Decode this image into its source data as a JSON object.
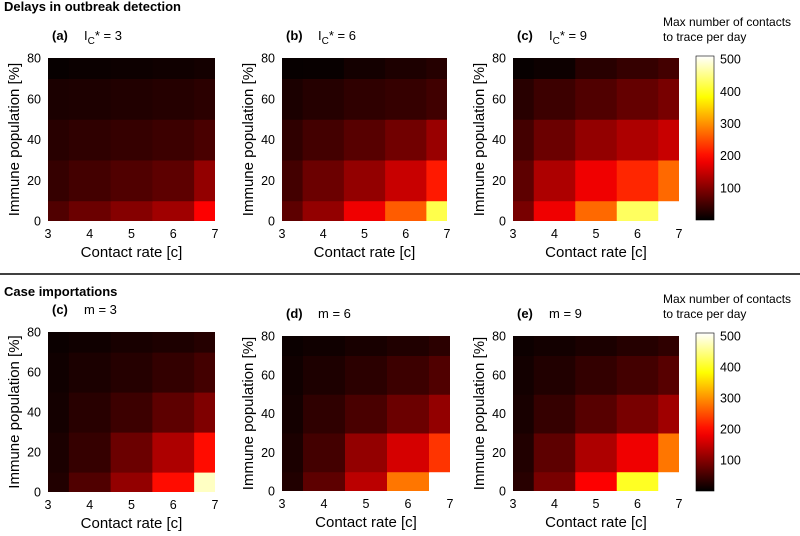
{
  "figure": {
    "sections": [
      {
        "title": "Delays in outbreak detection"
      },
      {
        "title": "Case importations"
      }
    ],
    "colorbar_title": [
      "Max number of contacts",
      "to trace per day"
    ],
    "colorbar_ticks": [
      100,
      200,
      300,
      400,
      500
    ],
    "colormap": "hot",
    "colors": {
      "background": "#ffffff",
      "separator": "#000000"
    }
  },
  "chart_data": [
    {
      "type": "heatmap",
      "section": "Delays in outbreak detection",
      "letter": "(a)",
      "param": "I",
      "param_sub": "C",
      "param_suffix": "* = 3",
      "xlabel": "Contact rate [c]",
      "ylabel": "Immune population [%]",
      "x_ticks": [
        3,
        4,
        5,
        6,
        7
      ],
      "y_ticks": [
        0,
        20,
        40,
        60,
        80
      ],
      "xlim": [
        3,
        7
      ],
      "ylim": [
        0,
        80
      ],
      "clim": [
        0,
        510
      ],
      "x_centers": [
        3,
        4,
        5,
        6,
        7
      ],
      "y_centers": [
        0,
        20,
        40,
        60,
        80
      ],
      "values": [
        [
          60,
          80,
          100,
          120,
          190
        ],
        [
          40,
          50,
          60,
          70,
          110
        ],
        [
          30,
          35,
          40,
          45,
          55
        ],
        [
          20,
          22,
          25,
          28,
          32
        ],
        [
          5,
          8,
          10,
          12,
          15
        ]
      ]
    },
    {
      "type": "heatmap",
      "section": "Delays in outbreak detection",
      "letter": "(b)",
      "param": "I",
      "param_sub": "C",
      "param_suffix": "* = 6",
      "xlabel": "Contact rate [c]",
      "ylabel": "Immune population [%]",
      "x_ticks": [
        3,
        4,
        5,
        6,
        7
      ],
      "y_ticks": [
        0,
        20,
        40,
        60,
        80
      ],
      "xlim": [
        3,
        7
      ],
      "ylim": [
        0,
        80
      ],
      "clim": [
        0,
        510
      ],
      "x_centers": [
        3,
        4,
        5,
        6,
        7
      ],
      "y_centers": [
        0,
        20,
        40,
        60,
        80
      ],
      "values": [
        [
          70,
          110,
          180,
          260,
          420
        ],
        [
          50,
          80,
          110,
          150,
          210
        ],
        [
          35,
          50,
          65,
          85,
          115
        ],
        [
          20,
          28,
          35,
          40,
          48
        ],
        [
          5,
          6,
          15,
          22,
          28
        ]
      ]
    },
    {
      "type": "heatmap",
      "section": "Delays in outbreak detection",
      "letter": "(c)",
      "param": "I",
      "param_sub": "C",
      "param_suffix": "* = 9",
      "xlabel": "Contact rate [c]",
      "ylabel": "Immune population [%]",
      "x_ticks": [
        3,
        4,
        5,
        6,
        7
      ],
      "y_ticks": [
        0,
        20,
        40,
        60,
        80
      ],
      "xlim": [
        3,
        7
      ],
      "ylim": [
        0,
        80
      ],
      "clim": [
        0,
        510
      ],
      "x_centers": [
        3,
        4,
        5,
        6,
        7
      ],
      "y_centers": [
        0,
        20,
        40,
        60,
        80
      ],
      "values": [
        [
          90,
          180,
          270,
          430,
          510
        ],
        [
          70,
          130,
          180,
          220,
          270
        ],
        [
          50,
          80,
          110,
          130,
          150
        ],
        [
          30,
          45,
          60,
          75,
          90
        ],
        [
          5,
          10,
          30,
          40,
          50
        ]
      ]
    },
    {
      "type": "heatmap",
      "section": "Case importations",
      "letter": "(c)",
      "param": "m = 3",
      "param_sub": "",
      "param_suffix": "",
      "xlabel": "Contact rate [c]",
      "ylabel": "Immune population [%]",
      "x_ticks": [
        3,
        4,
        5,
        6,
        7
      ],
      "y_ticks": [
        0,
        20,
        40,
        60,
        80
      ],
      "xlim": [
        3,
        7
      ],
      "ylim": [
        0,
        80
      ],
      "clim": [
        0,
        510
      ],
      "x_centers": [
        3,
        4,
        5,
        6,
        7
      ],
      "y_centers": [
        0,
        20,
        40,
        60,
        80
      ],
      "values": [
        [
          25,
          60,
          110,
          200,
          480
        ],
        [
          20,
          40,
          80,
          130,
          200
        ],
        [
          15,
          30,
          45,
          70,
          95
        ],
        [
          12,
          20,
          28,
          38,
          50
        ],
        [
          8,
          12,
          18,
          22,
          28
        ]
      ]
    },
    {
      "type": "heatmap",
      "section": "Case importations",
      "letter": "(d)",
      "param": "m = 6",
      "param_sub": "",
      "param_suffix": "",
      "xlabel": "Contact rate [c]",
      "ylabel": "Immune population [%]",
      "x_ticks": [
        3,
        4,
        5,
        6,
        7
      ],
      "y_ticks": [
        0,
        20,
        40,
        60,
        80
      ],
      "xlim": [
        3,
        7
      ],
      "ylim": [
        0,
        80
      ],
      "clim": [
        0,
        510
      ],
      "x_centers": [
        3,
        4,
        5,
        6,
        7
      ],
      "y_centers": [
        0,
        20,
        40,
        60,
        80
      ],
      "values": [
        [
          25,
          70,
          140,
          280,
          510
        ],
        [
          20,
          50,
          110,
          160,
          230
        ],
        [
          15,
          35,
          55,
          80,
          110
        ],
        [
          12,
          22,
          32,
          45,
          60
        ],
        [
          8,
          12,
          18,
          24,
          32
        ]
      ]
    },
    {
      "type": "heatmap",
      "section": "Case importations",
      "letter": "(e)",
      "param": "m = 9",
      "param_sub": "",
      "param_suffix": "",
      "xlabel": "Contact rate [c]",
      "ylabel": "Immune population [%]",
      "x_ticks": [
        3,
        4,
        5,
        6,
        7
      ],
      "y_ticks": [
        0,
        20,
        40,
        60,
        80
      ],
      "xlim": [
        3,
        7
      ],
      "ylim": [
        0,
        80
      ],
      "clim": [
        0,
        510
      ],
      "x_centers": [
        3,
        4,
        5,
        6,
        7
      ],
      "y_centers": [
        0,
        20,
        40,
        60,
        80
      ],
      "values": [
        [
          30,
          90,
          190,
          400,
          510
        ],
        [
          25,
          70,
          130,
          180,
          280
        ],
        [
          18,
          40,
          65,
          90,
          120
        ],
        [
          14,
          25,
          38,
          50,
          65
        ],
        [
          10,
          14,
          20,
          28,
          35
        ]
      ]
    }
  ]
}
